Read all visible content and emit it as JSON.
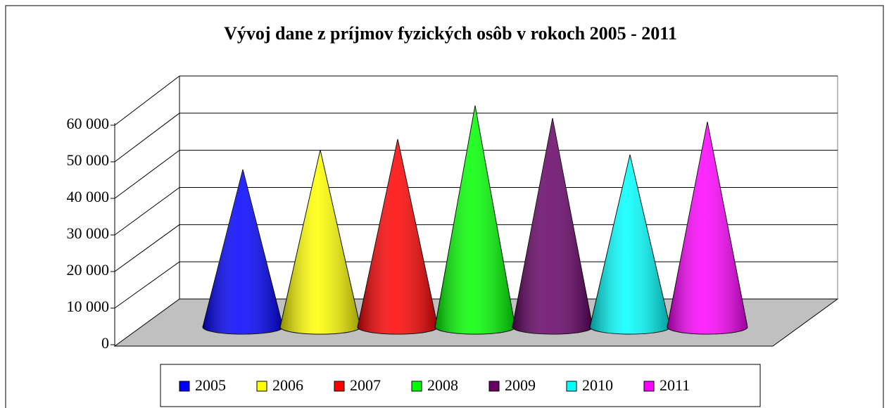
{
  "chart_data": {
    "type": "cone",
    "title": "Vývoj dane z príjmov fyzických osôb v rokoch 2005 - 2011",
    "categories": [
      "2005",
      "2006",
      "2007",
      "2008",
      "2009",
      "2010",
      "2011"
    ],
    "values": [
      42300,
      47600,
      50500,
      59600,
      56200,
      46300,
      55200
    ],
    "colors": [
      "#0000ff",
      "#ffff00",
      "#ff0000",
      "#00ff00",
      "#660066",
      "#00ffff",
      "#ff00ff"
    ],
    "ylim": [
      0,
      60000
    ],
    "yticks": [
      0,
      {
        "value": 10000,
        "label": "10 000"
      },
      {
        "value": 20000,
        "label": "20 000"
      },
      {
        "value": 30000,
        "label": "30 000"
      },
      {
        "value": 40000,
        "label": "40 000"
      },
      {
        "value": 50000,
        "label": "50 000"
      },
      {
        "value": 60000,
        "label": "60 000"
      }
    ],
    "grid": true
  }
}
